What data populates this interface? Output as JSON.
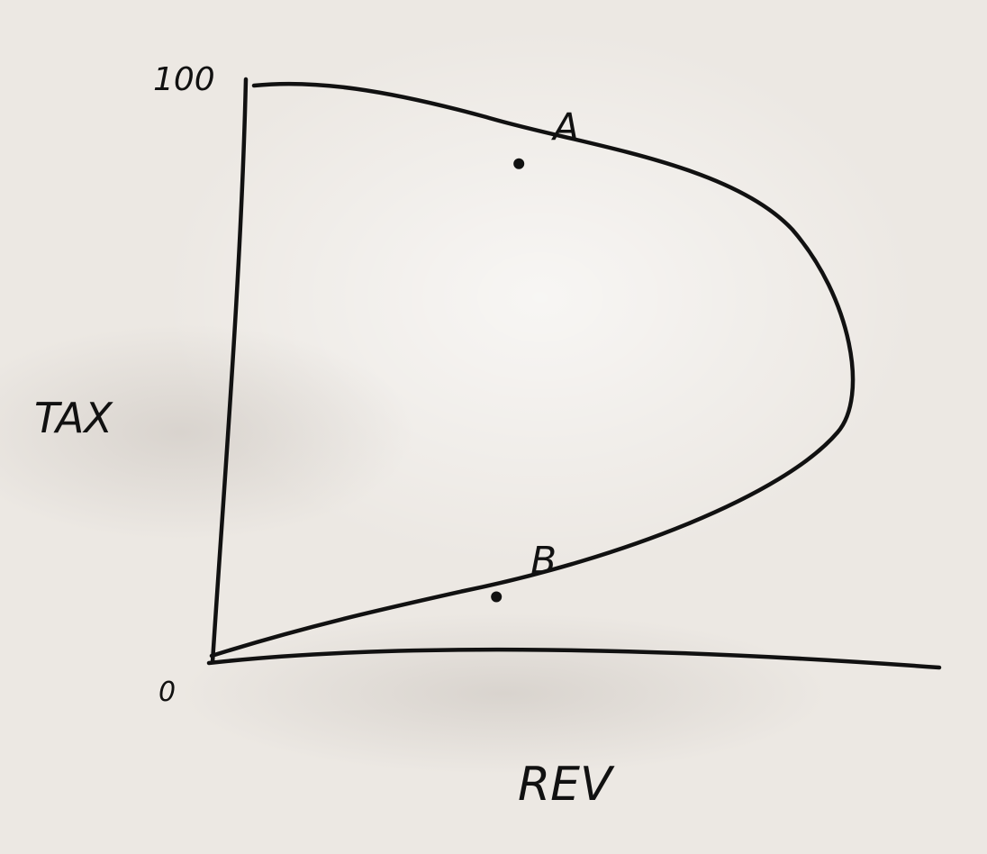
{
  "chart_data": {
    "type": "line",
    "xlabel": "REV",
    "ylabel": "TAX",
    "y_ticks": [
      "0",
      "100"
    ],
    "ylim": [
      0,
      100
    ],
    "grid": false,
    "points": [
      {
        "label": "A",
        "tax": 86,
        "rev": 40
      },
      {
        "label": "B",
        "tax": 11,
        "rev": 40
      }
    ],
    "curve": [
      {
        "tax": 0,
        "rev": 0
      },
      {
        "tax": 11,
        "rev": 40
      },
      {
        "tax": 50,
        "rev": 100
      },
      {
        "tax": 86,
        "rev": 40
      },
      {
        "tax": 100,
        "rev": 0
      }
    ],
    "ink_color": "#111111",
    "paper_color": "#ece8e3"
  }
}
